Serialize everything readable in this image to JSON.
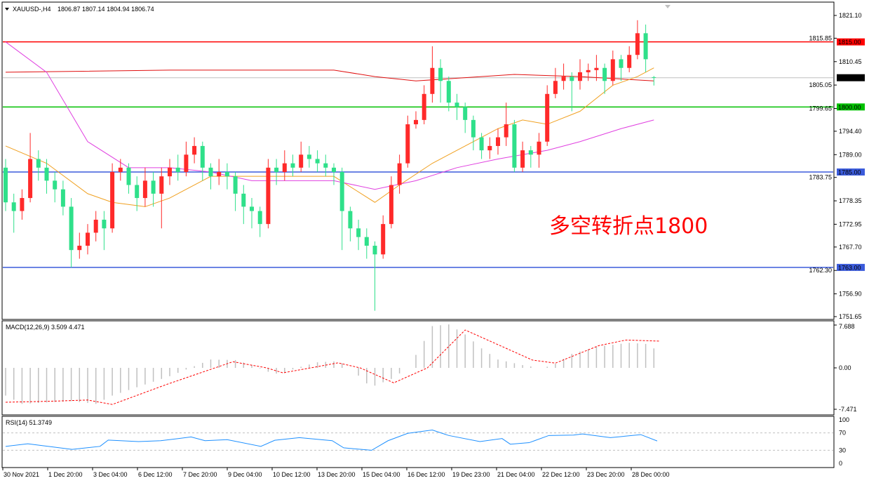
{
  "header": {
    "symbol": "XAUUSD-,H4",
    "ohlc": "1806.87 1807.14 1804.94 1806.74"
  },
  "annotation": {
    "text": "多空转折点1800",
    "color": "#ff0000"
  },
  "colors": {
    "bull": "#ff2a2a",
    "bear": "#2fe08a",
    "ma_slow": "#e01010",
    "ma_fast": "#f0a020",
    "ma_mid": "#e040e0",
    "macd_hist": "#c0c0c0",
    "macd_signal": "#ff0000",
    "rsi": "#1e90ff"
  },
  "price_axis": {
    "range": [
      1751.65,
      1821.1
    ],
    "ticks": [
      "1821.10",
      "1815.85",
      "1810.45",
      "1805.05",
      "1799.65",
      "1794.40",
      "1789.00",
      "1783.75",
      "1778.35",
      "1772.95",
      "1767.70",
      "1762.30",
      "1756.90",
      "1751.65"
    ]
  },
  "levels": [
    {
      "price": 1815.0,
      "label": "1815.00",
      "color": "#ff0000"
    },
    {
      "price": 1806.74,
      "label": "1806.74",
      "color": "#000000",
      "line": "#c0c0c0"
    },
    {
      "price": 1800.0,
      "label": "1800.00",
      "color": "#00c000"
    },
    {
      "price": 1785.0,
      "label": "1785.00",
      "color": "#3b5bdb"
    },
    {
      "price": 1763.0,
      "label": "1763.00",
      "color": "#3b5bdb"
    }
  ],
  "time_axis": [
    "30 Nov 2021",
    "1 Dec 20:00",
    "3 Dec 04:00",
    "6 Dec 12:00",
    "7 Dec 20:00",
    "9 Dec 04:00",
    "10 Dec 12:00",
    "13 Dec 20:00",
    "15 Dec 04:00",
    "16 Dec 12:00",
    "19 Dec 23:00",
    "21 Dec 04:00",
    "22 Dec 12:00",
    "23 Dec 20:00",
    "28 Dec 00:00"
  ],
  "chart_data": [
    {
      "type": "candlestick",
      "title": "XAUUSD-,H4",
      "ohlc": [
        [
          1786,
          1788,
          1776,
          1778
        ],
        [
          1778,
          1780,
          1771,
          1776
        ],
        [
          1776,
          1781,
          1774,
          1779
        ],
        [
          1779,
          1794,
          1778,
          1788
        ],
        [
          1788,
          1790,
          1783,
          1786
        ],
        [
          1786,
          1788,
          1780,
          1783
        ],
        [
          1783,
          1785,
          1778,
          1781
        ],
        [
          1781,
          1783,
          1775,
          1777
        ],
        [
          1777,
          1779,
          1763,
          1767
        ],
        [
          1767,
          1771,
          1765,
          1768
        ],
        [
          1768,
          1773,
          1766,
          1771
        ],
        [
          1771,
          1776,
          1769,
          1774
        ],
        [
          1774,
          1776,
          1767,
          1772
        ],
        [
          1772,
          1787,
          1771,
          1785
        ],
        [
          1785,
          1788,
          1783,
          1786
        ],
        [
          1786,
          1787,
          1780,
          1782
        ],
        [
          1782,
          1784,
          1776,
          1779
        ],
        [
          1779,
          1786,
          1777,
          1783
        ],
        [
          1783,
          1785,
          1777,
          1780
        ],
        [
          1780,
          1786,
          1772,
          1784
        ],
        [
          1784,
          1788,
          1782,
          1786
        ],
        [
          1786,
          1789,
          1783,
          1785
        ],
        [
          1785,
          1792,
          1784,
          1789
        ],
        [
          1789,
          1793,
          1787,
          1791
        ],
        [
          1791,
          1792,
          1783,
          1786
        ],
        [
          1786,
          1787,
          1781,
          1784
        ],
        [
          1784,
          1788,
          1782,
          1785
        ],
        [
          1785,
          1787,
          1781,
          1784
        ],
        [
          1784,
          1785,
          1776,
          1780
        ],
        [
          1780,
          1782,
          1773,
          1777
        ],
        [
          1777,
          1779,
          1772,
          1776
        ],
        [
          1776,
          1777,
          1770,
          1773
        ],
        [
          1773,
          1788,
          1772,
          1786
        ],
        [
          1786,
          1788,
          1782,
          1785
        ],
        [
          1785,
          1790,
          1783,
          1787
        ],
        [
          1787,
          1789,
          1784,
          1786
        ],
        [
          1786,
          1792,
          1785,
          1789
        ],
        [
          1789,
          1791,
          1786,
          1788
        ],
        [
          1788,
          1790,
          1785,
          1787
        ],
        [
          1787,
          1789,
          1784,
          1786
        ],
        [
          1786,
          1787,
          1782,
          1785
        ],
        [
          1785,
          1786,
          1767,
          1776
        ],
        [
          1776,
          1777,
          1769,
          1772
        ],
        [
          1772,
          1774,
          1767,
          1770
        ],
        [
          1770,
          1772,
          1765,
          1768
        ],
        [
          1768,
          1769,
          1753,
          1766
        ],
        [
          1766,
          1775,
          1765,
          1773
        ],
        [
          1773,
          1784,
          1772,
          1782
        ],
        [
          1782,
          1789,
          1780,
          1787
        ],
        [
          1787,
          1798,
          1786,
          1796
        ],
        [
          1796,
          1799,
          1795,
          1797
        ],
        [
          1797,
          1805,
          1796,
          1803
        ],
        [
          1803,
          1814,
          1801,
          1809
        ],
        [
          1809,
          1811,
          1801,
          1806
        ],
        [
          1806,
          1807,
          1799,
          1801
        ],
        [
          1801,
          1803,
          1797,
          1800
        ],
        [
          1800,
          1801,
          1794,
          1797
        ],
        [
          1797,
          1798,
          1790,
          1793
        ],
        [
          1793,
          1794,
          1788,
          1790
        ],
        [
          1790,
          1793,
          1788,
          1791
        ],
        [
          1791,
          1795,
          1789,
          1793
        ],
        [
          1793,
          1801,
          1791,
          1796
        ],
        [
          1796,
          1797,
          1785,
          1786
        ],
        [
          1786,
          1792,
          1785,
          1790
        ],
        [
          1790,
          1791,
          1786,
          1789
        ],
        [
          1789,
          1794,
          1786,
          1792
        ],
        [
          1792,
          1805,
          1791,
          1803
        ],
        [
          1803,
          1809,
          1802,
          1806
        ],
        [
          1806,
          1810,
          1804,
          1807
        ],
        [
          1807,
          1808,
          1799,
          1806
        ],
        [
          1806,
          1811,
          1804,
          1808
        ],
        [
          1808,
          1810,
          1806,
          1808.5
        ],
        [
          1808.5,
          1812,
          1806,
          1809
        ],
        [
          1809,
          1810,
          1803,
          1806
        ],
        [
          1806,
          1813,
          1805,
          1811
        ],
        [
          1811,
          1812,
          1806,
          1809
        ],
        [
          1809,
          1814,
          1808,
          1812
        ],
        [
          1812,
          1820,
          1811,
          1817
        ],
        [
          1817,
          1819,
          1808,
          1811
        ],
        [
          1806.87,
          1807.14,
          1804.94,
          1806.74
        ]
      ],
      "moving_averages": [
        {
          "points": [
            [
              0,
              1808
            ],
            [
              20,
              1808.5
            ],
            [
              40,
              1808.5
            ],
            [
              45,
              1807
            ],
            [
              50,
              1806
            ],
            [
              62,
              1807.5
            ],
            [
              70,
              1807
            ],
            [
              79,
              1806
            ]
          ]
        },
        {
          "points": [
            [
              0,
              1791
            ],
            [
              5,
              1787
            ],
            [
              10,
              1780
            ],
            [
              13,
              1778
            ],
            [
              17,
              1777
            ],
            [
              20,
              1779
            ],
            [
              25,
              1784
            ],
            [
              40,
              1784
            ],
            [
              45,
              1778
            ],
            [
              48,
              1782
            ],
            [
              52,
              1787
            ],
            [
              56,
              1791
            ],
            [
              60,
              1795
            ],
            [
              63,
              1797
            ],
            [
              66,
              1796
            ],
            [
              70,
              1799
            ],
            [
              74,
              1805
            ],
            [
              77,
              1807
            ],
            [
              79,
              1809
            ]
          ]
        },
        {
          "points": [
            [
              0,
              1815
            ],
            [
              5,
              1808
            ],
            [
              10,
              1792
            ],
            [
              15,
              1786
            ],
            [
              20,
              1786
            ],
            [
              25,
              1785
            ],
            [
              30,
              1783
            ],
            [
              40,
              1783
            ],
            [
              45,
              1781
            ],
            [
              50,
              1783
            ],
            [
              55,
              1786
            ],
            [
              60,
              1788
            ],
            [
              66,
              1790
            ],
            [
              70,
              1792
            ],
            [
              75,
              1795
            ],
            [
              79,
              1797
            ]
          ]
        }
      ]
    },
    {
      "type": "bar+line",
      "title": "MACD(12,26,9) 3.509 4.471",
      "ylim": [
        -7.471,
        7.688
      ],
      "ticks": [
        "7.688",
        "0.00",
        "-7.471"
      ],
      "histogram": [
        [
          0,
          -5
        ],
        [
          2,
          -6.5
        ],
        [
          8,
          -6
        ],
        [
          11,
          -6.5
        ],
        [
          13,
          -5
        ],
        [
          16,
          -3.5
        ],
        [
          20,
          -1.5
        ],
        [
          22.5,
          0
        ],
        [
          25,
          1.5
        ],
        [
          28,
          1.4
        ],
        [
          30,
          0.5
        ],
        [
          32,
          -0.7
        ],
        [
          33.5,
          -1.2
        ],
        [
          35.5,
          0
        ],
        [
          38,
          1
        ],
        [
          40.5,
          1.2
        ],
        [
          42,
          0
        ],
        [
          44.5,
          -3.5
        ],
        [
          47,
          -2
        ],
        [
          49,
          0
        ],
        [
          50.5,
          3.5
        ],
        [
          52,
          7.5
        ],
        [
          54,
          7.8
        ],
        [
          56,
          6
        ],
        [
          58,
          3.5
        ],
        [
          60,
          1.5
        ],
        [
          63,
          0.5
        ],
        [
          65,
          0
        ],
        [
          66.5,
          0.3
        ],
        [
          69,
          2.5
        ],
        [
          72,
          3.8
        ],
        [
          76,
          4.5
        ],
        [
          78,
          4.3
        ],
        [
          79,
          3.5
        ]
      ],
      "signal": [
        [
          0,
          -6.2
        ],
        [
          6,
          -6.0
        ],
        [
          10,
          -5.8
        ],
        [
          13,
          -6.6
        ],
        [
          19.6,
          -3
        ],
        [
          27.7,
          1.1
        ],
        [
          31.8,
          0
        ],
        [
          33.8,
          -0.9
        ],
        [
          37.2,
          0
        ],
        [
          40.5,
          0.9
        ],
        [
          43.2,
          0
        ],
        [
          47.3,
          -2.7
        ],
        [
          51.4,
          0
        ],
        [
          56,
          6.8
        ],
        [
          64.2,
          1.4
        ],
        [
          67,
          0.85
        ],
        [
          72.3,
          4
        ],
        [
          75.6,
          5
        ],
        [
          79.7,
          4.8
        ]
      ]
    },
    {
      "type": "line",
      "title": "RSI(14) 51.3749",
      "ylim": [
        0,
        100
      ],
      "ticks": [
        "100",
        "70",
        "30",
        "0"
      ],
      "levels": [
        70,
        30
      ],
      "values": [
        [
          0,
          39
        ],
        [
          2.7,
          45
        ],
        [
          8.1,
          32
        ],
        [
          11.5,
          39
        ],
        [
          12.5,
          53.5
        ],
        [
          16.2,
          50
        ],
        [
          18.9,
          52
        ],
        [
          22.6,
          60.6
        ],
        [
          24.3,
          52
        ],
        [
          27,
          54.5
        ],
        [
          31.1,
          39
        ],
        [
          32.8,
          53
        ],
        [
          35.8,
          59
        ],
        [
          39.8,
          52
        ],
        [
          41.2,
          35.6
        ],
        [
          44.6,
          30
        ],
        [
          46.6,
          52
        ],
        [
          49,
          69
        ],
        [
          52,
          76.6
        ],
        [
          54,
          64
        ],
        [
          57.8,
          50
        ],
        [
          60.5,
          57
        ],
        [
          61.5,
          44
        ],
        [
          63.8,
          47.5
        ],
        [
          66.2,
          64
        ],
        [
          69.2,
          65
        ],
        [
          70.3,
          67.6
        ],
        [
          73.7,
          59
        ],
        [
          77.4,
          66
        ],
        [
          79.4,
          51.4
        ]
      ]
    }
  ]
}
